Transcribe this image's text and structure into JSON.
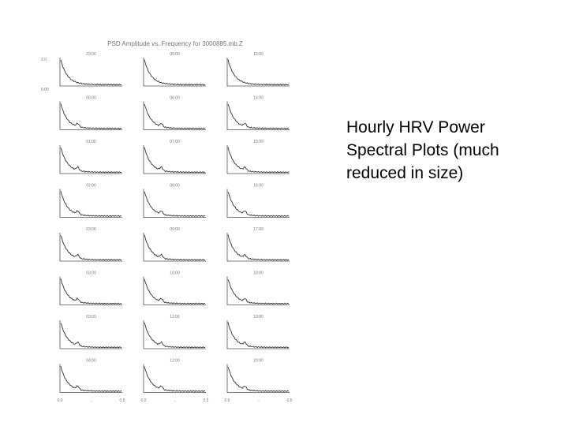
{
  "caption": {
    "lines": [
      "Hourly HRV Power",
      "Spectral Plots (much",
      "reduced in size)"
    ]
  },
  "chart_data": {
    "type": "line",
    "title": "PSD Amplitude vs. Frequency for 3000885.mb.Z",
    "y_tick_labels": [
      "2.0 ..",
      "0.00"
    ],
    "x_tick_labels": [
      "0.0",
      "..",
      "0.5"
    ],
    "grid": false,
    "line_color": "#333333",
    "panels": [
      {
        "label": "23:00"
      },
      {
        "label": "05:00"
      },
      {
        "label": "13:00"
      },
      {
        "label": "00:00"
      },
      {
        "label": "06:00"
      },
      {
        "label": "14:00"
      },
      {
        "label": "01:00"
      },
      {
        "label": "07:00"
      },
      {
        "label": "15:00"
      },
      {
        "label": "02:00"
      },
      {
        "label": "08:00"
      },
      {
        "label": "16:00"
      },
      {
        "label": "03:00"
      },
      {
        "label": "09:00"
      },
      {
        "label": "17:00"
      },
      {
        "label": "03:00"
      },
      {
        "label": "10:00"
      },
      {
        "label": "18:00"
      },
      {
        "label": "03:00"
      },
      {
        "label": "11:00"
      },
      {
        "label": "19:00"
      },
      {
        "label": "04:00"
      },
      {
        "label": "12:00"
      },
      {
        "label": "20:00"
      }
    ]
  }
}
